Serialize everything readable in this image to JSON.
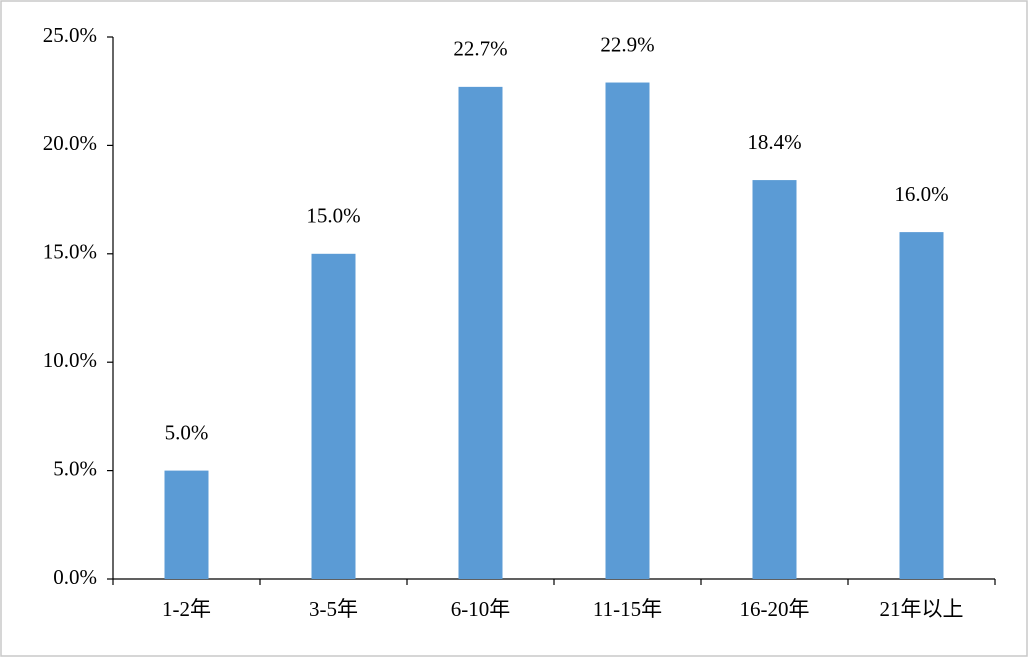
{
  "chart_data": {
    "type": "bar",
    "categories": [
      "1-2年",
      "3-5年",
      "6-10年",
      "11-15年",
      "16-20年",
      "21年以上"
    ],
    "values": [
      5.0,
      15.0,
      22.7,
      22.9,
      18.4,
      16.0
    ],
    "value_labels": [
      "5.0%",
      "15.0%",
      "22.7%",
      "22.9%",
      "18.4%",
      "16.0%"
    ],
    "color": "#5b9bd5",
    "ylim": [
      0,
      25
    ],
    "yticks": [
      {
        "value": 0,
        "label": "0.0%"
      },
      {
        "value": 5,
        "label": "5.0%"
      },
      {
        "value": 10,
        "label": "10.0%"
      },
      {
        "value": 15,
        "label": "15.0%"
      },
      {
        "value": 20,
        "label": "20.0%"
      },
      {
        "value": 25,
        "label": "25.0%"
      }
    ],
    "grid": false
  }
}
